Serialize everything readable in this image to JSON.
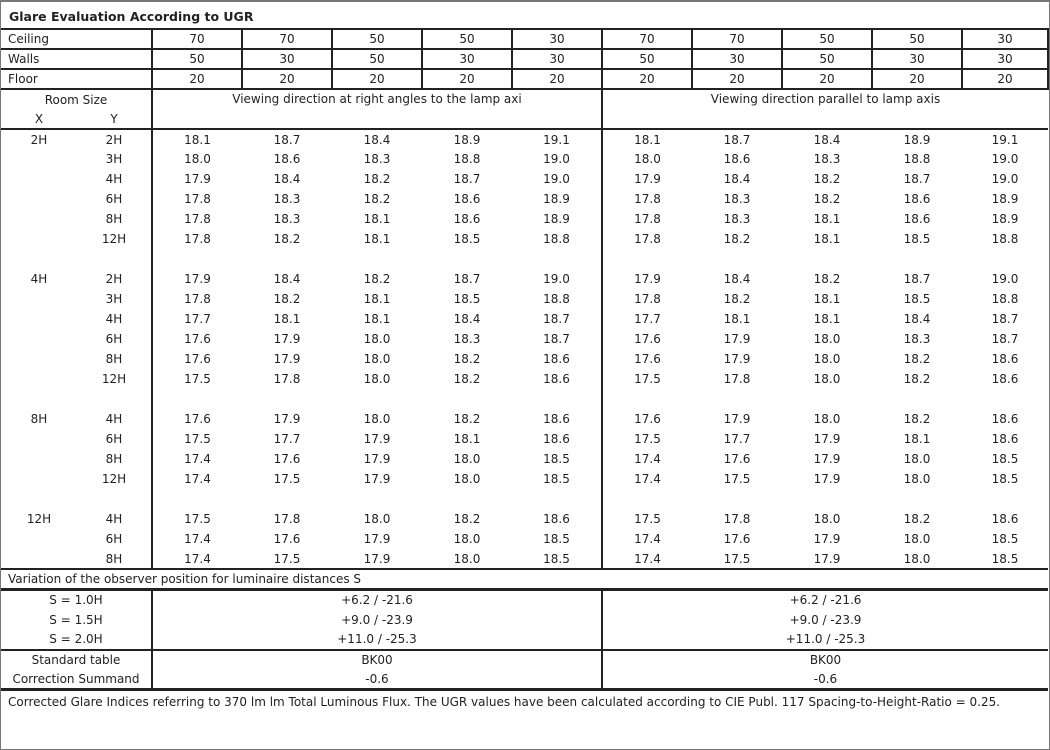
{
  "title": "Glare Evaluation According to UGR",
  "reflectances": [
    {
      "label": "Ceiling",
      "values": [
        "70",
        "70",
        "50",
        "50",
        "30",
        "70",
        "70",
        "50",
        "50",
        "30"
      ]
    },
    {
      "label": "Walls",
      "values": [
        "50",
        "30",
        "50",
        "30",
        "30",
        "50",
        "30",
        "50",
        "30",
        "30"
      ]
    },
    {
      "label": "Floor",
      "values": [
        "20",
        "20",
        "20",
        "20",
        "20",
        "20",
        "20",
        "20",
        "20",
        "20"
      ]
    }
  ],
  "room_size_label": "Room Size",
  "x_label": "X",
  "y_label": "Y",
  "direction_right_angles": "Viewing direction at right angles to the lamp axi",
  "direction_parallel": "Viewing direction parallel to lamp axis",
  "blocks": [
    {
      "x": "2H",
      "rows": [
        {
          "y": "2H",
          "v": [
            "18.1",
            "18.7",
            "18.4",
            "18.9",
            "19.1",
            "18.1",
            "18.7",
            "18.4",
            "18.9",
            "19.1"
          ]
        },
        {
          "y": "3H",
          "v": [
            "18.0",
            "18.6",
            "18.3",
            "18.8",
            "19.0",
            "18.0",
            "18.6",
            "18.3",
            "18.8",
            "19.0"
          ]
        },
        {
          "y": "4H",
          "v": [
            "17.9",
            "18.4",
            "18.2",
            "18.7",
            "19.0",
            "17.9",
            "18.4",
            "18.2",
            "18.7",
            "19.0"
          ]
        },
        {
          "y": "6H",
          "v": [
            "17.8",
            "18.3",
            "18.2",
            "18.6",
            "18.9",
            "17.8",
            "18.3",
            "18.2",
            "18.6",
            "18.9"
          ]
        },
        {
          "y": "8H",
          "v": [
            "17.8",
            "18.3",
            "18.1",
            "18.6",
            "18.9",
            "17.8",
            "18.3",
            "18.1",
            "18.6",
            "18.9"
          ]
        },
        {
          "y": "12H",
          "v": [
            "17.8",
            "18.2",
            "18.1",
            "18.5",
            "18.8",
            "17.8",
            "18.2",
            "18.1",
            "18.5",
            "18.8"
          ]
        }
      ]
    },
    {
      "x": "4H",
      "rows": [
        {
          "y": "2H",
          "v": [
            "17.9",
            "18.4",
            "18.2",
            "18.7",
            "19.0",
            "17.9",
            "18.4",
            "18.2",
            "18.7",
            "19.0"
          ]
        },
        {
          "y": "3H",
          "v": [
            "17.8",
            "18.2",
            "18.1",
            "18.5",
            "18.8",
            "17.8",
            "18.2",
            "18.1",
            "18.5",
            "18.8"
          ]
        },
        {
          "y": "4H",
          "v": [
            "17.7",
            "18.1",
            "18.1",
            "18.4",
            "18.7",
            "17.7",
            "18.1",
            "18.1",
            "18.4",
            "18.7"
          ]
        },
        {
          "y": "6H",
          "v": [
            "17.6",
            "17.9",
            "18.0",
            "18.3",
            "18.7",
            "17.6",
            "17.9",
            "18.0",
            "18.3",
            "18.7"
          ]
        },
        {
          "y": "8H",
          "v": [
            "17.6",
            "17.9",
            "18.0",
            "18.2",
            "18.6",
            "17.6",
            "17.9",
            "18.0",
            "18.2",
            "18.6"
          ]
        },
        {
          "y": "12H",
          "v": [
            "17.5",
            "17.8",
            "18.0",
            "18.2",
            "18.6",
            "17.5",
            "17.8",
            "18.0",
            "18.2",
            "18.6"
          ]
        }
      ]
    },
    {
      "x": "8H",
      "rows": [
        {
          "y": "4H",
          "v": [
            "17.6",
            "17.9",
            "18.0",
            "18.2",
            "18.6",
            "17.6",
            "17.9",
            "18.0",
            "18.2",
            "18.6"
          ]
        },
        {
          "y": "6H",
          "v": [
            "17.5",
            "17.7",
            "17.9",
            "18.1",
            "18.6",
            "17.5",
            "17.7",
            "17.9",
            "18.1",
            "18.6"
          ]
        },
        {
          "y": "8H",
          "v": [
            "17.4",
            "17.6",
            "17.9",
            "18.0",
            "18.5",
            "17.4",
            "17.6",
            "17.9",
            "18.0",
            "18.5"
          ]
        },
        {
          "y": "12H",
          "v": [
            "17.4",
            "17.5",
            "17.9",
            "18.0",
            "18.5",
            "17.4",
            "17.5",
            "17.9",
            "18.0",
            "18.5"
          ]
        }
      ]
    },
    {
      "x": "12H",
      "rows": [
        {
          "y": "4H",
          "v": [
            "17.5",
            "17.8",
            "18.0",
            "18.2",
            "18.6",
            "17.5",
            "17.8",
            "18.0",
            "18.2",
            "18.6"
          ]
        },
        {
          "y": "6H",
          "v": [
            "17.4",
            "17.6",
            "17.9",
            "18.0",
            "18.5",
            "17.4",
            "17.6",
            "17.9",
            "18.0",
            "18.5"
          ]
        },
        {
          "y": "8H",
          "v": [
            "17.4",
            "17.5",
            "17.9",
            "18.0",
            "18.5",
            "17.4",
            "17.5",
            "17.9",
            "18.0",
            "18.5"
          ]
        }
      ]
    }
  ],
  "variation_label": "Variation of the observer position for luminaire distances S",
  "variations": [
    {
      "label": "S = 1.0H",
      "right": "+6.2 / -21.6",
      "parallel": "+6.2 / -21.6"
    },
    {
      "label": "S = 1.5H",
      "right": "+9.0 / -23.9",
      "parallel": "+9.0 / -23.9"
    },
    {
      "label": "S = 2.0H",
      "right": "+11.0 / -25.3",
      "parallel": "+11.0 / -25.3"
    }
  ],
  "standard_table": {
    "label": "Standard table",
    "right": "BK00",
    "parallel": "BK00"
  },
  "correction": {
    "label": "Correction Summand",
    "right": "-0.6",
    "parallel": "-0.6"
  },
  "footer": "Corrected Glare Indices referring to 370 lm lm Total Luminous Flux. The UGR values have been calculated according to CIE Publ. 117    Spacing-to-Height-Ratio = 0.25."
}
